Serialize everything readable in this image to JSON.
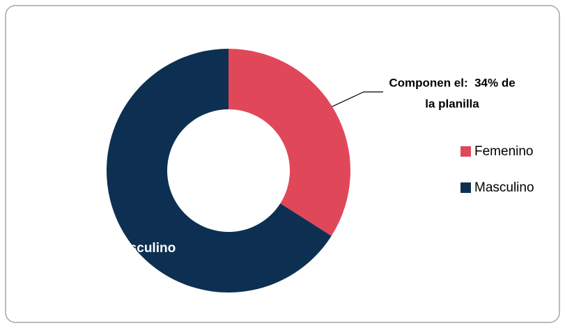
{
  "chart_data": {
    "type": "donut",
    "categories": [
      "Femenino",
      "Masculino"
    ],
    "series": [
      {
        "values": [
          34,
          66
        ],
        "colors": [
          "#e0485a",
          "#0d3052"
        ]
      }
    ],
    "data_labels": [
      null,
      "Masculino"
    ],
    "annotation": [
      "Componen el:  34% de",
      "la planilla"
    ],
    "legend": "right"
  }
}
